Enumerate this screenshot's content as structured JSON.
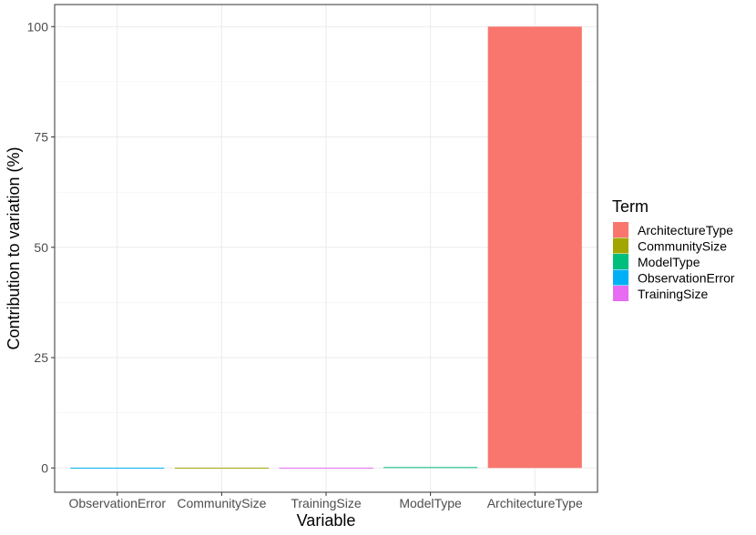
{
  "chart_data": {
    "type": "bar",
    "categories": [
      "ObservationError",
      "CommunitySize",
      "TrainingSize",
      "ModelType",
      "ArchitectureType"
    ],
    "values": [
      0.05,
      0.05,
      0.05,
      0.2,
      100
    ],
    "xlabel": "Variable",
    "ylabel": "Contribution to variation (%)",
    "ylim": [
      -5.5,
      105
    ],
    "yticks": [
      0,
      25,
      50,
      75,
      100
    ],
    "grid": true,
    "legend": {
      "title": "Term",
      "placement": "right",
      "entries": [
        "ArchitectureType",
        "CommunitySize",
        "ModelType",
        "ObservationError",
        "TrainingSize"
      ]
    },
    "colors": {
      "ArchitectureType": "#F8766D",
      "CommunitySize": "#A3A500",
      "ModelType": "#00BF7D",
      "ObservationError": "#00B0F6",
      "TrainingSize": "#E76BF3"
    }
  }
}
